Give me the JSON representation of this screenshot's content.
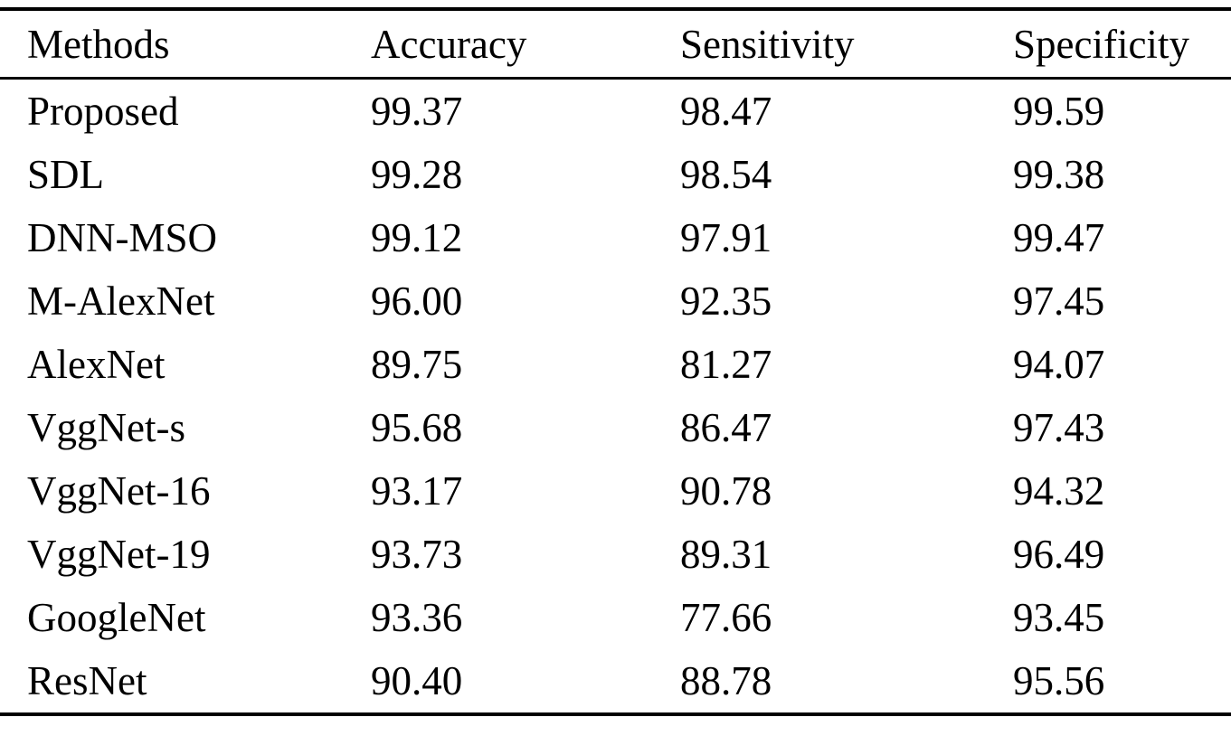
{
  "colors": {
    "background": "#ffffff",
    "text": "#000000",
    "rule": "#000000"
  },
  "chart_data": {
    "type": "table",
    "columns": [
      "Methods",
      "Accuracy",
      "Sensitivity",
      "Specificity"
    ],
    "rows": [
      {
        "method": "Proposed",
        "accuracy": "99.37",
        "sensitivity": "98.47",
        "specificity": "99.59"
      },
      {
        "method": "SDL",
        "accuracy": "99.28",
        "sensitivity": "98.54",
        "specificity": "99.38"
      },
      {
        "method": "DNN-MSO",
        "accuracy": "99.12",
        "sensitivity": "97.91",
        "specificity": "99.47"
      },
      {
        "method": "M-AlexNet",
        "accuracy": "96.00",
        "sensitivity": "92.35",
        "specificity": "97.45"
      },
      {
        "method": "AlexNet",
        "accuracy": "89.75",
        "sensitivity": "81.27",
        "specificity": "94.07"
      },
      {
        "method": "VggNet-s",
        "accuracy": "95.68",
        "sensitivity": "86.47",
        "specificity": "97.43"
      },
      {
        "method": "VggNet-16",
        "accuracy": "93.17",
        "sensitivity": "90.78",
        "specificity": "94.32"
      },
      {
        "method": "VggNet-19",
        "accuracy": "93.73",
        "sensitivity": "89.31",
        "specificity": "96.49"
      },
      {
        "method": "GoogleNet",
        "accuracy": "93.36",
        "sensitivity": "77.66",
        "specificity": "93.45"
      },
      {
        "method": "ResNet",
        "accuracy": "90.40",
        "sensitivity": "88.78",
        "specificity": "95.56"
      }
    ]
  }
}
